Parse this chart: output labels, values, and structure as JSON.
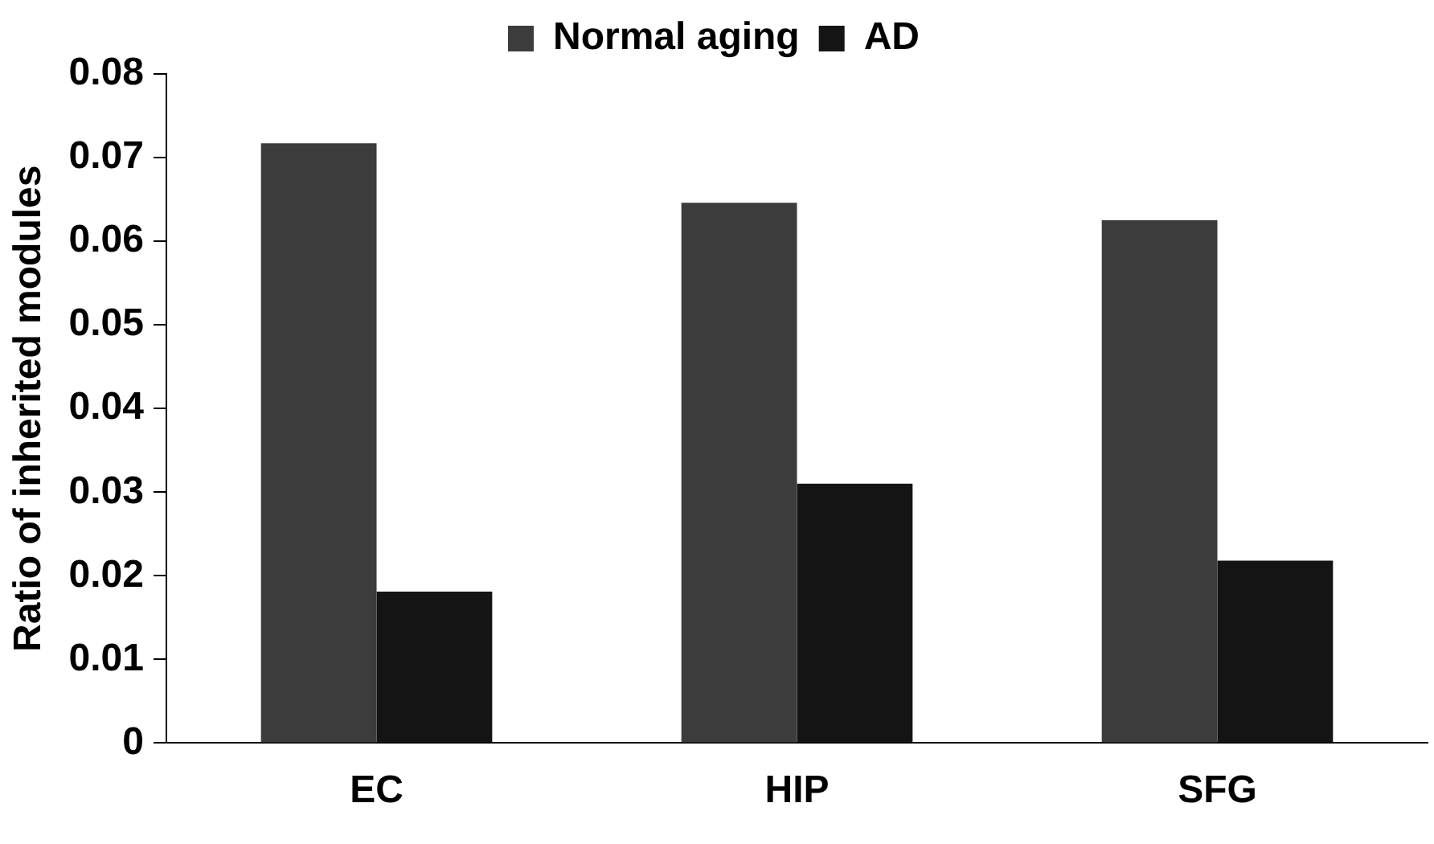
{
  "chart_data": {
    "type": "bar",
    "ylabel": "Ratio of inherited modules",
    "categories": [
      "EC",
      "HIP",
      "SFG"
    ],
    "series": [
      {
        "name": "Normal aging",
        "color": "#3c3c3c",
        "values": [
          0.0717,
          0.0646,
          0.0625
        ]
      },
      {
        "name": "AD",
        "color": "#141414",
        "values": [
          0.0181,
          0.031,
          0.0218
        ]
      }
    ],
    "ylim": [
      0,
      0.08
    ],
    "yticks": [
      0,
      0.01,
      0.02,
      0.03,
      0.04,
      0.05,
      0.06,
      0.07,
      0.08
    ],
    "grid": false,
    "legend": "top"
  }
}
